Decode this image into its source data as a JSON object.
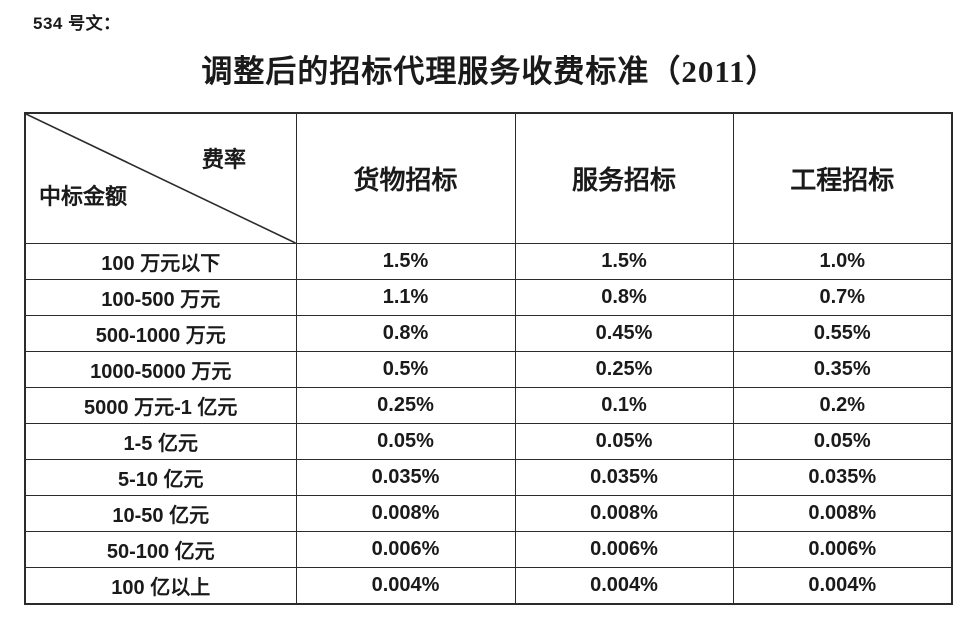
{
  "page": {
    "doc_ref": "534 号文：",
    "title": "调整后的招标代理服务收费标准（2011）"
  },
  "colors": {
    "background": "#ffffff",
    "text": "#1a1a1a",
    "border": "#2b2b2b"
  },
  "table": {
    "corner_top_right": "费率",
    "corner_bottom_left": "中标金额",
    "columns": [
      "货物招标",
      "服务招标",
      "工程招标"
    ],
    "rows": [
      {
        "label": "100 万元以下",
        "values": [
          "1.5%",
          "1.5%",
          "1.0%"
        ]
      },
      {
        "label": "100-500 万元",
        "values": [
          "1.1%",
          "0.8%",
          "0.7%"
        ]
      },
      {
        "label": "500-1000 万元",
        "values": [
          "0.8%",
          "0.45%",
          "0.55%"
        ]
      },
      {
        "label": "1000-5000 万元",
        "values": [
          "0.5%",
          "0.25%",
          "0.35%"
        ]
      },
      {
        "label": "5000 万元-1 亿元",
        "values": [
          "0.25%",
          "0.1%",
          "0.2%"
        ]
      },
      {
        "label": "1-5 亿元",
        "values": [
          "0.05%",
          "0.05%",
          "0.05%"
        ]
      },
      {
        "label": "5-10 亿元",
        "values": [
          "0.035%",
          "0.035%",
          "0.035%"
        ]
      },
      {
        "label": "10-50 亿元",
        "values": [
          "0.008%",
          "0.008%",
          "0.008%"
        ]
      },
      {
        "label": "50-100 亿元",
        "values": [
          "0.006%",
          "0.006%",
          "0.006%"
        ]
      },
      {
        "label": "100 亿以上",
        "values": [
          "0.004%",
          "0.004%",
          "0.004%"
        ]
      }
    ]
  }
}
